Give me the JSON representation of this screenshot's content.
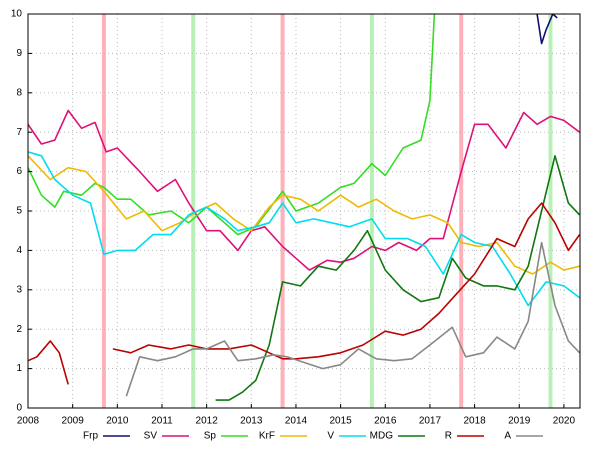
{
  "chart_data": {
    "type": "line",
    "xlim": [
      2008,
      2020.36
    ],
    "ylim": [
      0,
      10
    ],
    "xticks": [
      2008,
      2009,
      2010,
      2011,
      2012,
      2013,
      2014,
      2015,
      2016,
      2017,
      2018,
      2019,
      2020
    ],
    "yticks": [
      0,
      1,
      2,
      3,
      4,
      5,
      6,
      7,
      8,
      9,
      10
    ],
    "grid": true,
    "bands": [
      {
        "x": 2009.7,
        "color": "#ffb0b8"
      },
      {
        "x": 2011.7,
        "color": "#b8f0b8"
      },
      {
        "x": 2013.7,
        "color": "#ffb0b8"
      },
      {
        "x": 2015.7,
        "color": "#b8f0b8"
      },
      {
        "x": 2017.7,
        "color": "#ffb0b8"
      },
      {
        "x": 2019.7,
        "color": "#b8f0b8"
      }
    ],
    "series": [
      {
        "name": "Frp",
        "color": "#10106e",
        "x": [
          2019.4,
          2019.5,
          2019.6,
          2019.75,
          2019.85
        ],
        "values": [
          10,
          9.25,
          9.6,
          10,
          9.9
        ]
      },
      {
        "name": "SV",
        "color": "#dd1177",
        "x": [
          2008,
          2008.3,
          2008.6,
          2008.9,
          2009.2,
          2009.5,
          2009.75,
          2010,
          2010.5,
          2010.9,
          2011.3,
          2011.6,
          2012,
          2012.3,
          2012.7,
          2013,
          2013.3,
          2013.7,
          2014,
          2014.3,
          2014.7,
          2015,
          2015.3,
          2015.7,
          2016,
          2016.3,
          2016.7,
          2017,
          2017.3,
          2017.7,
          2018,
          2018.3,
          2018.7,
          2019.1,
          2019.4,
          2019.7,
          2020,
          2020.35
        ],
        "values": [
          7.2,
          6.7,
          6.8,
          7.55,
          7.1,
          7.25,
          6.5,
          6.6,
          6.0,
          5.5,
          5.8,
          5.2,
          4.5,
          4.5,
          4.0,
          4.5,
          4.6,
          4.1,
          3.8,
          3.5,
          3.75,
          3.7,
          3.8,
          4.1,
          4.0,
          4.2,
          4.0,
          4.3,
          4.3,
          6.0,
          7.2,
          7.2,
          6.6,
          7.5,
          7.2,
          7.4,
          7.3,
          7.0
        ]
      },
      {
        "name": "Sp",
        "color": "#33dd22",
        "x": [
          2008,
          2008.3,
          2008.6,
          2008.8,
          2009.2,
          2009.5,
          2009.7,
          2010,
          2010.3,
          2010.7,
          2011.2,
          2011.6,
          2012,
          2012.4,
          2012.7,
          2013.1,
          2013.5,
          2013.7,
          2014,
          2014.5,
          2015,
          2015.3,
          2015.7,
          2016,
          2016.4,
          2016.8,
          2017,
          2017.1
        ],
        "values": [
          6.1,
          5.4,
          5.1,
          5.5,
          5.4,
          5.7,
          5.6,
          5.3,
          5.3,
          4.9,
          5.0,
          4.7,
          5.1,
          4.7,
          4.4,
          4.6,
          5.2,
          5.5,
          5.0,
          5.2,
          5.6,
          5.7,
          6.2,
          5.9,
          6.6,
          6.8,
          7.8,
          10.0
        ]
      },
      {
        "name": "KrF",
        "color": "#eebb00",
        "x": [
          2008,
          2008.5,
          2008.9,
          2009.3,
          2009.7,
          2010.2,
          2010.6,
          2011,
          2011.4,
          2011.8,
          2012.2,
          2012.6,
          2013,
          2013.4,
          2013.7,
          2014.1,
          2014.5,
          2015,
          2015.4,
          2015.8,
          2016.2,
          2016.6,
          2017,
          2017.4,
          2017.7,
          2018.1,
          2018.5,
          2018.9,
          2019.3,
          2019.7,
          2020,
          2020.35
        ],
        "values": [
          6.4,
          5.8,
          6.1,
          6.0,
          5.5,
          4.8,
          5.0,
          4.5,
          4.7,
          5.0,
          5.2,
          4.8,
          4.5,
          5.1,
          5.4,
          5.3,
          5.0,
          5.4,
          5.1,
          5.3,
          5.0,
          4.8,
          4.9,
          4.7,
          4.2,
          4.1,
          4.2,
          3.6,
          3.4,
          3.7,
          3.5,
          3.6
        ]
      },
      {
        "name": "V",
        "color": "#00ddee",
        "x": [
          2008,
          2008.3,
          2008.6,
          2009,
          2009.4,
          2009.7,
          2010,
          2010.4,
          2010.8,
          2011.2,
          2011.6,
          2012,
          2012.4,
          2012.7,
          2013.1,
          2013.4,
          2013.7,
          2014,
          2014.4,
          2014.8,
          2015.2,
          2015.7,
          2016,
          2016.5,
          2016.9,
          2017.3,
          2017.7,
          2018,
          2018.4,
          2018.8,
          2019.2,
          2019.6,
          2020,
          2020.35
        ],
        "values": [
          6.5,
          6.4,
          5.8,
          5.4,
          5.2,
          3.9,
          4.0,
          4.0,
          4.4,
          4.4,
          4.9,
          5.1,
          4.8,
          4.5,
          4.6,
          4.7,
          5.2,
          4.7,
          4.8,
          4.7,
          4.6,
          4.8,
          4.3,
          4.3,
          4.1,
          3.4,
          4.4,
          4.2,
          4.1,
          3.4,
          2.6,
          3.2,
          3.1,
          2.8
        ]
      },
      {
        "name": "MDG",
        "color": "#117711",
        "x": [
          2012.2,
          2012.5,
          2012.8,
          2013.1,
          2013.4,
          2013.7,
          2014.1,
          2014.5,
          2014.9,
          2015.3,
          2015.6,
          2016,
          2016.4,
          2016.8,
          2017.2,
          2017.5,
          2017.8,
          2018.2,
          2018.5,
          2018.9,
          2019.2,
          2019.5,
          2019.8,
          2020.1,
          2020.35
        ],
        "values": [
          0.2,
          0.2,
          0.4,
          0.7,
          1.6,
          3.2,
          3.1,
          3.6,
          3.5,
          4.0,
          4.5,
          3.5,
          3.0,
          2.7,
          2.8,
          3.8,
          3.3,
          3.1,
          3.1,
          3.0,
          3.6,
          5.0,
          6.4,
          5.2,
          4.9
        ]
      },
      {
        "name": "R",
        "color": "#bb0000",
        "x": [
          2008,
          2008.2,
          2008.5,
          2008.7,
          2008.9,
          2009.4,
          2009.9,
          2010.3,
          2010.7,
          2011.2,
          2011.6,
          2012,
          2012.5,
          2013,
          2013.4,
          2013.7,
          2014,
          2014.5,
          2015,
          2015.5,
          2016,
          2016.4,
          2016.8,
          2017.2,
          2017.6,
          2018,
          2018.5,
          2018.9,
          2019.2,
          2019.5,
          2019.8,
          2020.1,
          2020.35
        ],
        "values": [
          1.2,
          1.3,
          1.7,
          1.4,
          0.6,
          null,
          1.5,
          1.4,
          1.6,
          1.5,
          1.6,
          1.5,
          1.5,
          1.6,
          1.4,
          1.25,
          1.25,
          1.3,
          1.4,
          1.6,
          1.95,
          1.85,
          2.0,
          2.4,
          2.9,
          3.4,
          4.3,
          4.1,
          4.8,
          5.2,
          4.7,
          4.0,
          4.4
        ]
      },
      {
        "name": "A",
        "color": "#888888",
        "x": [
          2010.2,
          2010.5,
          2010.9,
          2011.3,
          2011.7,
          2012,
          2012.4,
          2012.7,
          2013.1,
          2013.5,
          2013.8,
          2014.2,
          2014.6,
          2015,
          2015.4,
          2015.8,
          2016.2,
          2016.6,
          2017,
          2017.5,
          2017.8,
          2018.2,
          2018.5,
          2018.9,
          2019.2,
          2019.5,
          2019.8,
          2020.1,
          2020.35
        ],
        "values": [
          0.3,
          1.3,
          1.2,
          1.3,
          1.5,
          1.5,
          1.7,
          1.2,
          1.25,
          1.35,
          1.3,
          1.15,
          1.0,
          1.1,
          1.5,
          1.25,
          1.2,
          1.25,
          1.6,
          2.05,
          1.3,
          1.4,
          1.8,
          1.5,
          2.2,
          4.2,
          2.6,
          1.7,
          1.4
        ]
      }
    ]
  }
}
